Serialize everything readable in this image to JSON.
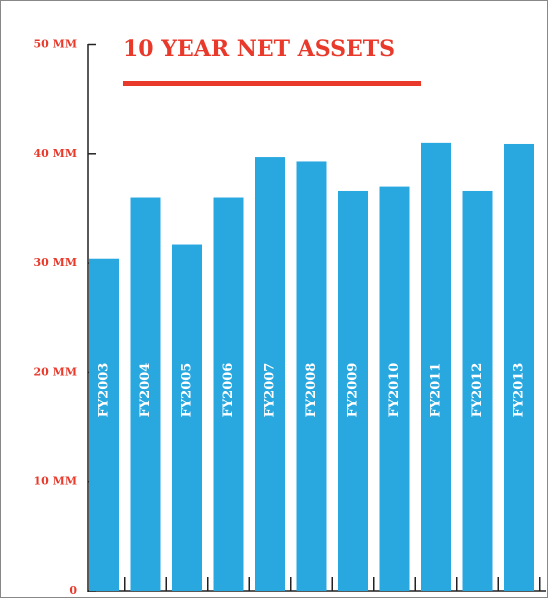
{
  "chart_data": {
    "type": "bar",
    "title": "10 YEAR NET ASSETS",
    "categories": [
      "FY2003",
      "FY2004",
      "FY2005",
      "FY2006",
      "FY2007",
      "FY2008",
      "FY2009",
      "FY2010",
      "FY2011",
      "FY2012",
      "FY2013"
    ],
    "values": [
      30.4,
      36,
      31.7,
      36,
      39.7,
      39.3,
      36.6,
      37,
      41,
      36.6,
      40.9
    ],
    "color": "#29a8e0",
    "ylim": [
      0,
      50
    ],
    "yticks": [
      0,
      {
        "value": 10,
        "label": "10 MM"
      },
      {
        "value": 20,
        "label": "20 MM"
      },
      {
        "value": 30,
        "label": "30 MM"
      },
      {
        "value": 40,
        "label": "40 MM"
      },
      {
        "value": 50,
        "label": "50 MM"
      }
    ]
  }
}
